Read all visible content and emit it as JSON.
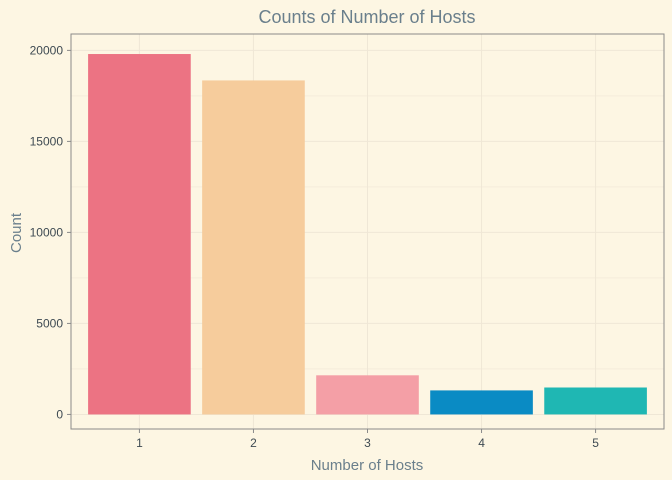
{
  "chart_data": {
    "type": "bar",
    "title": "Counts of Number of Hosts",
    "xlabel": "Number of Hosts",
    "ylabel": "Count",
    "categories": [
      "1",
      "2",
      "3",
      "4",
      "5"
    ],
    "values": [
      19800,
      18350,
      2150,
      1320,
      1480
    ],
    "colors": [
      "#ec7383",
      "#f6cc9c",
      "#f49fa6",
      "#0a8bc4",
      "#1fb7b3"
    ],
    "ylim": [
      -800,
      20900
    ],
    "yticks": [
      0,
      5000,
      10000,
      15000,
      20000
    ],
    "grid": true,
    "legend": "none",
    "background": "#fdf6e3",
    "panel_border": "#8a8a8a",
    "grid_color": "#efe7d6"
  }
}
